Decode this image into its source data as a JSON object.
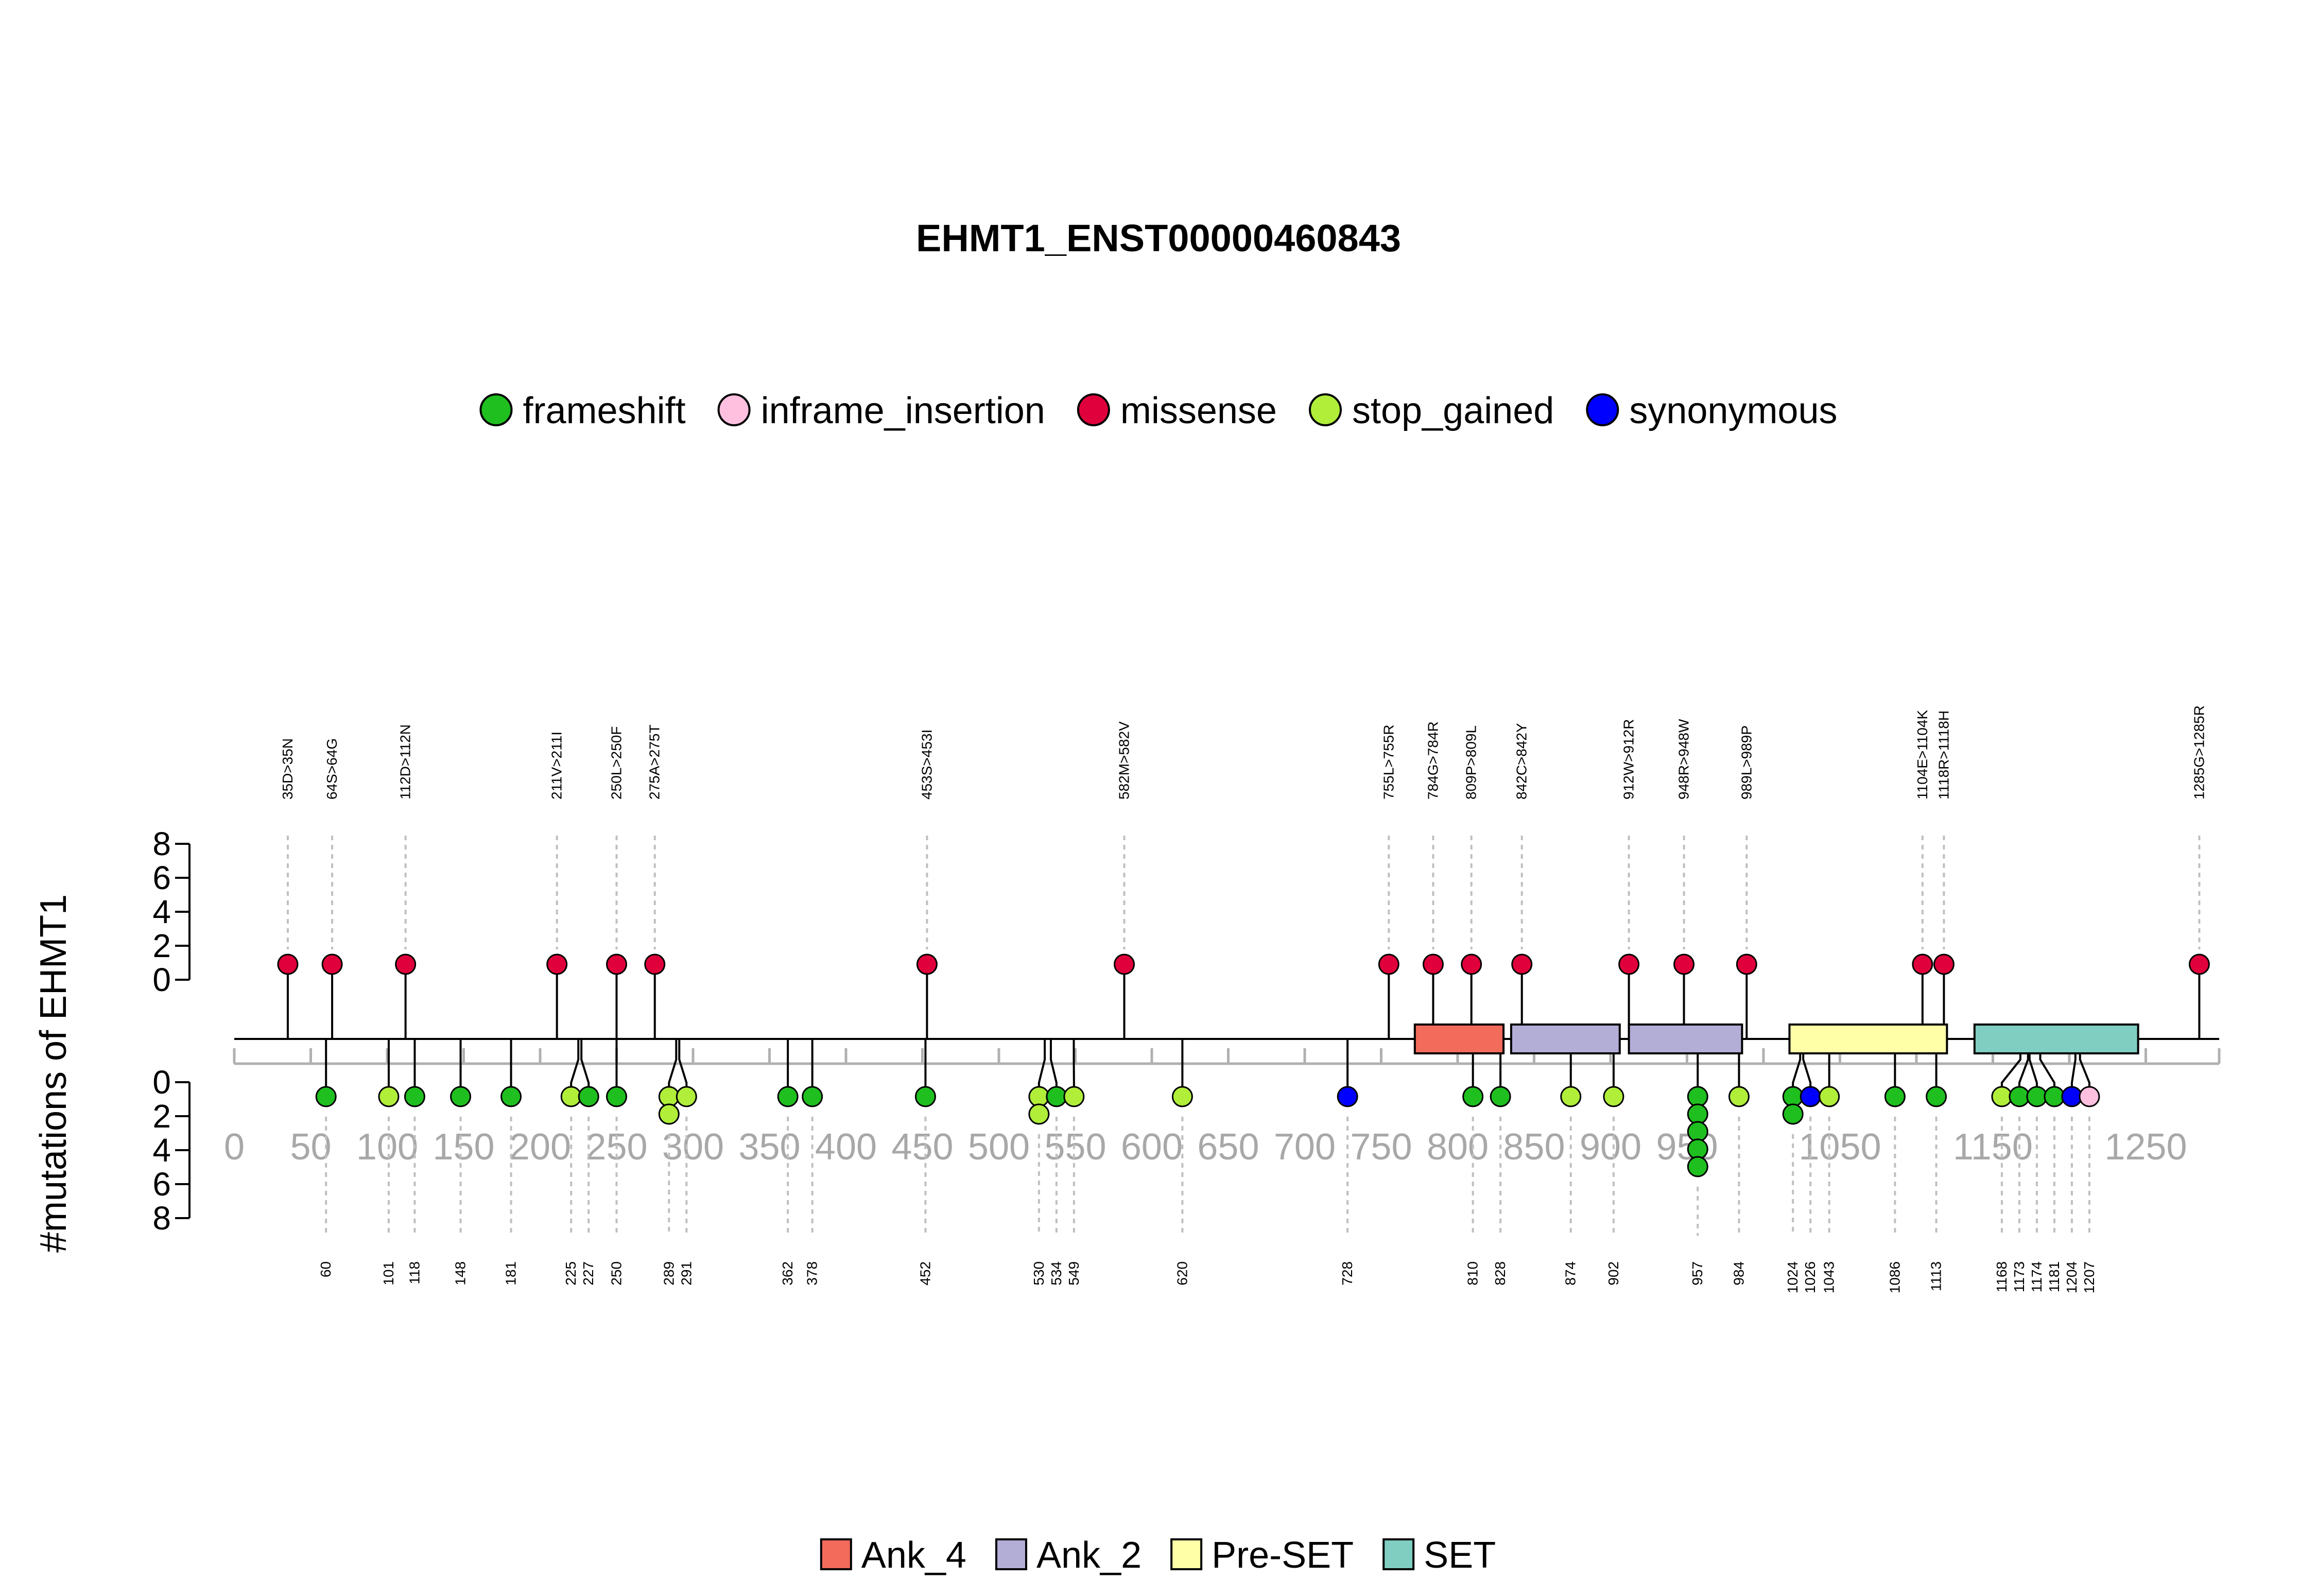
{
  "chart_data": {
    "type": "lollipop",
    "title": "EHMT1_ENST00000460843",
    "ylabel": "#mutations of EHMT1",
    "xlim": [
      0,
      1298
    ],
    "x_ticks": [
      0,
      50,
      100,
      150,
      200,
      250,
      300,
      350,
      400,
      450,
      500,
      550,
      600,
      650,
      700,
      750,
      800,
      850,
      900,
      950,
      1000,
      1050,
      1100,
      1150,
      1200,
      1250
    ],
    "x_tick_labels": [
      "0",
      "50",
      "100",
      "150",
      "200",
      "250",
      "300",
      "350",
      "400",
      "450",
      "500",
      "550",
      "600",
      "650",
      "700",
      "750",
      "800",
      "850",
      "900",
      "950",
      "",
      "1050",
      "",
      "1150",
      "",
      "1250"
    ],
    "y_ticks_top": [
      0,
      2,
      4,
      6,
      8
    ],
    "y_ticks_bottom": [
      0,
      2,
      4,
      6,
      8
    ],
    "mutation_colors": {
      "frameshift": "#1fbf1f",
      "inframe_insertion": "#ffc0e0",
      "missense": "#e0003c",
      "stop_gained": "#b0ee3a",
      "synonymous": "#0000ff"
    },
    "legend_top": [
      {
        "label": "frameshift",
        "color": "#1fbf1f"
      },
      {
        "label": "inframe_insertion",
        "color": "#ffc0e0"
      },
      {
        "label": "missense",
        "color": "#e0003c"
      },
      {
        "label": "stop_gained",
        "color": "#b0ee3a"
      },
      {
        "label": "synonymous",
        "color": "#0000ff"
      }
    ],
    "domains": [
      {
        "name": "Ank_4",
        "start": 772,
        "end": 830,
        "color": "#f26b5b"
      },
      {
        "name": "Ank_2",
        "start": 835,
        "end": 906,
        "color": "#b3aed6"
      },
      {
        "name": "Ank_2",
        "start": 912,
        "end": 986,
        "color": "#b3aed6"
      },
      {
        "name": "Pre-SET",
        "start": 1017,
        "end": 1120,
        "color": "#ffffa8"
      },
      {
        "name": "SET",
        "start": 1138,
        "end": 1245,
        "color": "#80cdc1"
      }
    ],
    "legend_bottom": [
      {
        "label": "Ank_4",
        "color": "#f26b5b"
      },
      {
        "label": "Ank_2",
        "color": "#b3aed6"
      },
      {
        "label": "Pre-SET",
        "color": "#ffffa8"
      },
      {
        "label": "SET",
        "color": "#80cdc1"
      }
    ],
    "missense": [
      {
        "pos": 35,
        "count": 1,
        "label": "35D>35N"
      },
      {
        "pos": 64,
        "count": 1,
        "label": "64S>64G"
      },
      {
        "pos": 112,
        "count": 1,
        "label": "112D>112N"
      },
      {
        "pos": 211,
        "count": 1,
        "label": "211V>211I"
      },
      {
        "pos": 250,
        "count": 1,
        "label": "250L>250F"
      },
      {
        "pos": 275,
        "count": 1,
        "label": "275A>275T"
      },
      {
        "pos": 453,
        "count": 1,
        "label": "453S>453I"
      },
      {
        "pos": 582,
        "count": 1,
        "label": "582M>582V"
      },
      {
        "pos": 755,
        "count": 1,
        "label": "755L>755R"
      },
      {
        "pos": 784,
        "count": 1,
        "label": "784G>784R"
      },
      {
        "pos": 809,
        "count": 1,
        "label": "809P>809L"
      },
      {
        "pos": 842,
        "count": 1,
        "label": "842C>842Y"
      },
      {
        "pos": 912,
        "count": 1,
        "label": "912W>912R"
      },
      {
        "pos": 948,
        "count": 1,
        "label": "948R>948W"
      },
      {
        "pos": 989,
        "count": 1,
        "label": "989L>989P"
      },
      {
        "pos": 1104,
        "count": 1,
        "label": "1104E>1104K"
      },
      {
        "pos": 1118,
        "count": 1,
        "label": "1118R>1118H"
      },
      {
        "pos": 1285,
        "count": 1,
        "label": "1285G>1285R"
      }
    ],
    "other": [
      {
        "pos": 60,
        "type": "frameshift",
        "count": 1,
        "label": "60"
      },
      {
        "pos": 101,
        "type": "stop_gained",
        "count": 1,
        "label": "101"
      },
      {
        "pos": 118,
        "type": "frameshift",
        "count": 1,
        "label": "118"
      },
      {
        "pos": 148,
        "type": "frameshift",
        "count": 1,
        "label": "148"
      },
      {
        "pos": 181,
        "type": "frameshift",
        "count": 1,
        "label": "181"
      },
      {
        "pos": 225,
        "type": "stop_gained",
        "count": 1,
        "label": "225"
      },
      {
        "pos": 227,
        "type": "frameshift",
        "count": 1,
        "label": "227"
      },
      {
        "pos": 250,
        "type": "frameshift",
        "count": 1,
        "label": "250"
      },
      {
        "pos": 289,
        "type": "stop_gained",
        "count": 2,
        "label": "289"
      },
      {
        "pos": 291,
        "type": "stop_gained",
        "count": 1,
        "label": "291"
      },
      {
        "pos": 362,
        "type": "frameshift",
        "count": 1,
        "label": "362"
      },
      {
        "pos": 378,
        "type": "frameshift",
        "count": 1,
        "label": "378"
      },
      {
        "pos": 452,
        "type": "frameshift",
        "count": 1,
        "label": "452"
      },
      {
        "pos": 530,
        "type": "stop_gained",
        "count": 2,
        "label": "530"
      },
      {
        "pos": 534,
        "type": "frameshift",
        "count": 1,
        "label": "534"
      },
      {
        "pos": 549,
        "type": "stop_gained",
        "count": 1,
        "label": "549"
      },
      {
        "pos": 620,
        "type": "stop_gained",
        "count": 1,
        "label": "620"
      },
      {
        "pos": 728,
        "type": "synonymous",
        "count": 1,
        "label": "728"
      },
      {
        "pos": 810,
        "type": "frameshift",
        "count": 1,
        "label": "810"
      },
      {
        "pos": 828,
        "type": "frameshift",
        "count": 1,
        "label": "828"
      },
      {
        "pos": 874,
        "type": "stop_gained",
        "count": 1,
        "label": "874"
      },
      {
        "pos": 902,
        "type": "stop_gained",
        "count": 1,
        "label": "902"
      },
      {
        "pos": 957,
        "type": "frameshift",
        "count": 5,
        "label": "957"
      },
      {
        "pos": 984,
        "type": "stop_gained",
        "count": 1,
        "label": "984"
      },
      {
        "pos": 1024,
        "type": "frameshift",
        "count": 2,
        "label": "1024"
      },
      {
        "pos": 1026,
        "type": "synonymous",
        "count": 1,
        "label": "1026"
      },
      {
        "pos": 1043,
        "type": "stop_gained",
        "count": 1,
        "label": "1043"
      },
      {
        "pos": 1086,
        "type": "frameshift",
        "count": 1,
        "label": "1086"
      },
      {
        "pos": 1113,
        "type": "frameshift",
        "count": 1,
        "label": "1113"
      },
      {
        "pos": 1168,
        "type": "stop_gained",
        "count": 1,
        "label": "1168"
      },
      {
        "pos": 1173,
        "type": "frameshift",
        "count": 1,
        "label": "1173"
      },
      {
        "pos": 1174,
        "type": "frameshift",
        "count": 1,
        "label": "1174"
      },
      {
        "pos": 1181,
        "type": "frameshift",
        "count": 1,
        "label": "1181"
      },
      {
        "pos": 1204,
        "type": "synonymous",
        "count": 1,
        "label": "1204"
      },
      {
        "pos": 1207,
        "type": "inframe_insertion",
        "count": 1,
        "label": "1207"
      }
    ]
  }
}
